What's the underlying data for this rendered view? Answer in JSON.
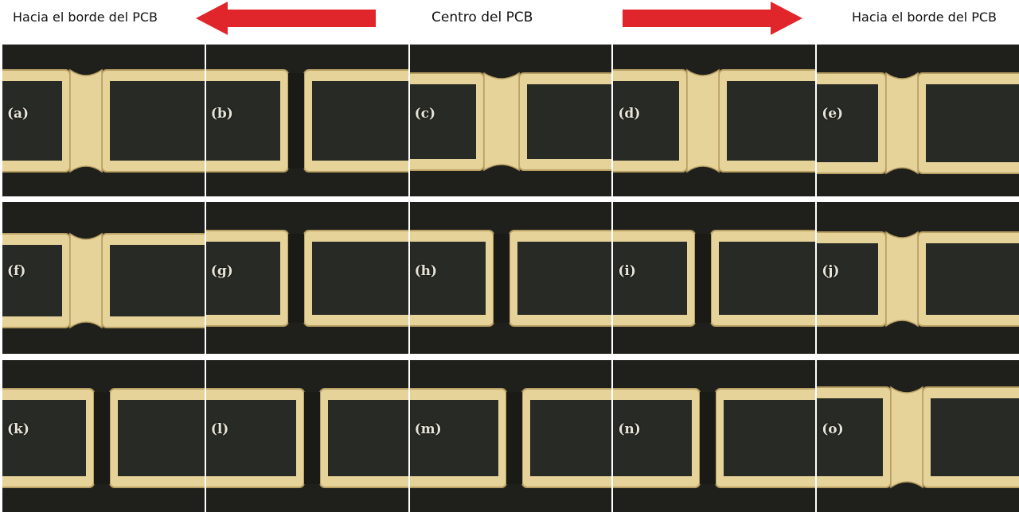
{
  "header": {
    "left_label": "Hacia el borde del PCB",
    "center_label": "Centro del PCB",
    "right_label": "Hacia el borde del PCB",
    "arrow_color": "#e0262b"
  },
  "colors": {
    "copper": "#e6d39a",
    "copper_edge": "#b9a063",
    "substrate": "#282a25",
    "background": "#1f201c"
  },
  "panels": [
    {
      "label": "(a)",
      "row": 0
    },
    {
      "label": "(b)",
      "row": 0
    },
    {
      "label": "(c)",
      "row": 0
    },
    {
      "label": "(d)",
      "row": 0
    },
    {
      "label": "(e)",
      "row": 0
    },
    {
      "label": "(f)",
      "row": 1
    },
    {
      "label": "(g)",
      "row": 1
    },
    {
      "label": "(h)",
      "row": 1
    },
    {
      "label": "(i)",
      "row": 1
    },
    {
      "label": "(j)",
      "row": 1
    },
    {
      "label": "(k)",
      "row": 2
    },
    {
      "label": "(l)",
      "row": 2
    },
    {
      "label": "(m)",
      "row": 2
    },
    {
      "label": "(n)",
      "row": 2
    },
    {
      "label": "(o)",
      "row": 2
    }
  ]
}
